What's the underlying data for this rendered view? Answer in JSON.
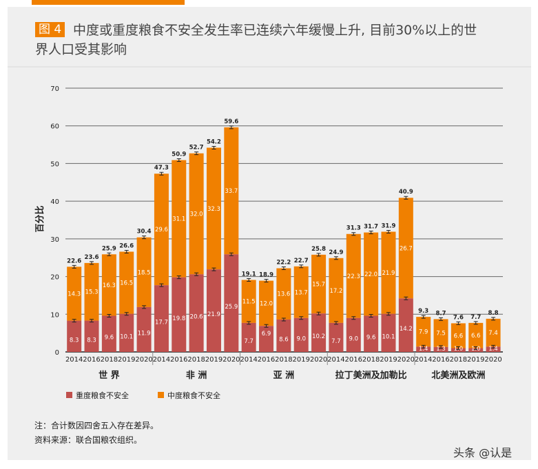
{
  "figure_tag": "图 4",
  "title_line1": "中度或重度粮食不安全发生率已连续六年缓慢上升, 目前30%以上的世",
  "title_line2": "界人口受其影响",
  "chart_data": {
    "type": "bar",
    "stacked": true,
    "ylabel": "百分比",
    "ylim": [
      0,
      70
    ],
    "yticks": [
      0,
      10,
      20,
      30,
      40,
      50,
      60,
      70
    ],
    "grid": true,
    "legend_position": "bottom-left",
    "groups": [
      {
        "name": "世 界",
        "years": [
          "2014",
          "2016",
          "2018",
          "2019",
          "2020"
        ],
        "severe": [
          8.3,
          8.3,
          9.6,
          10.1,
          11.9
        ],
        "moderate": [
          14.3,
          15.3,
          16.3,
          16.5,
          18.5
        ],
        "total": [
          22.6,
          23.6,
          25.9,
          26.6,
          30.4
        ]
      },
      {
        "name": "非 洲",
        "years": [
          "2014",
          "2016",
          "2018",
          "2019",
          "2020"
        ],
        "severe": [
          17.7,
          19.8,
          20.6,
          21.9,
          25.9
        ],
        "moderate": [
          29.6,
          31.1,
          32.0,
          32.3,
          33.7
        ],
        "total": [
          47.3,
          50.9,
          52.7,
          54.2,
          59.6
        ]
      },
      {
        "name": "亚 洲",
        "years": [
          "2014",
          "2016",
          "2018",
          "2019",
          "2020"
        ],
        "severe": [
          7.7,
          6.9,
          8.6,
          9.0,
          10.2
        ],
        "moderate": [
          11.5,
          12.0,
          13.6,
          13.7,
          15.7
        ],
        "total": [
          19.1,
          18.9,
          22.2,
          22.7,
          25.8
        ]
      },
      {
        "name": "拉丁美洲及加勒比",
        "years": [
          "2014",
          "2016",
          "2018",
          "2019",
          "2020"
        ],
        "severe": [
          7.7,
          9.0,
          9.6,
          10.1,
          14.2
        ],
        "moderate": [
          17.2,
          22.3,
          22.0,
          21.9,
          26.7
        ],
        "total": [
          24.9,
          31.3,
          31.7,
          31.9,
          40.9
        ]
      },
      {
        "name": "北美洲及欧洲",
        "years": [
          "2014",
          "2016",
          "2018",
          "2019",
          "2020"
        ],
        "severe": [
          1.4,
          1.3,
          1.0,
          1.0,
          1.4
        ],
        "moderate": [
          7.9,
          7.5,
          6.6,
          6.6,
          7.4
        ],
        "total": [
          9.3,
          8.7,
          7.6,
          7.7,
          8.8
        ]
      }
    ],
    "series": [
      {
        "name": "重度粮食不安全",
        "color": "#c0504d"
      },
      {
        "name": "中度粮食不安全",
        "color": "#f08000"
      }
    ]
  },
  "notes": [
    "注：合计数因四舍五入存在差异。",
    "资料来源：联合国粮农组织。"
  ],
  "watermark": "头条 @认是"
}
